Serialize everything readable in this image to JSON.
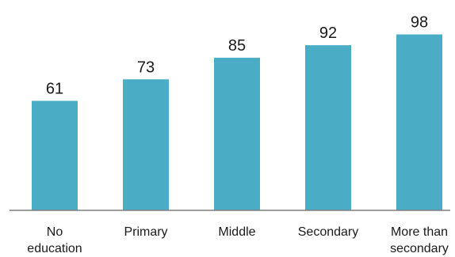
{
  "chart_data": {
    "type": "bar",
    "title": "",
    "xlabel": "",
    "ylabel": "",
    "categories": [
      [
        "No",
        "education"
      ],
      [
        "Primary"
      ],
      [
        "Middle"
      ],
      [
        "Secondary"
      ],
      [
        "More than",
        "secondary"
      ]
    ],
    "values": [
      61,
      73,
      85,
      92,
      98
    ],
    "value_labels": [
      "61",
      "73",
      "85",
      "92",
      "98"
    ],
    "ylim": [
      0,
      100
    ],
    "grid": false,
    "legend": "none",
    "bar_color": "#4BACC6",
    "axis_color": "#7f7f7f"
  }
}
